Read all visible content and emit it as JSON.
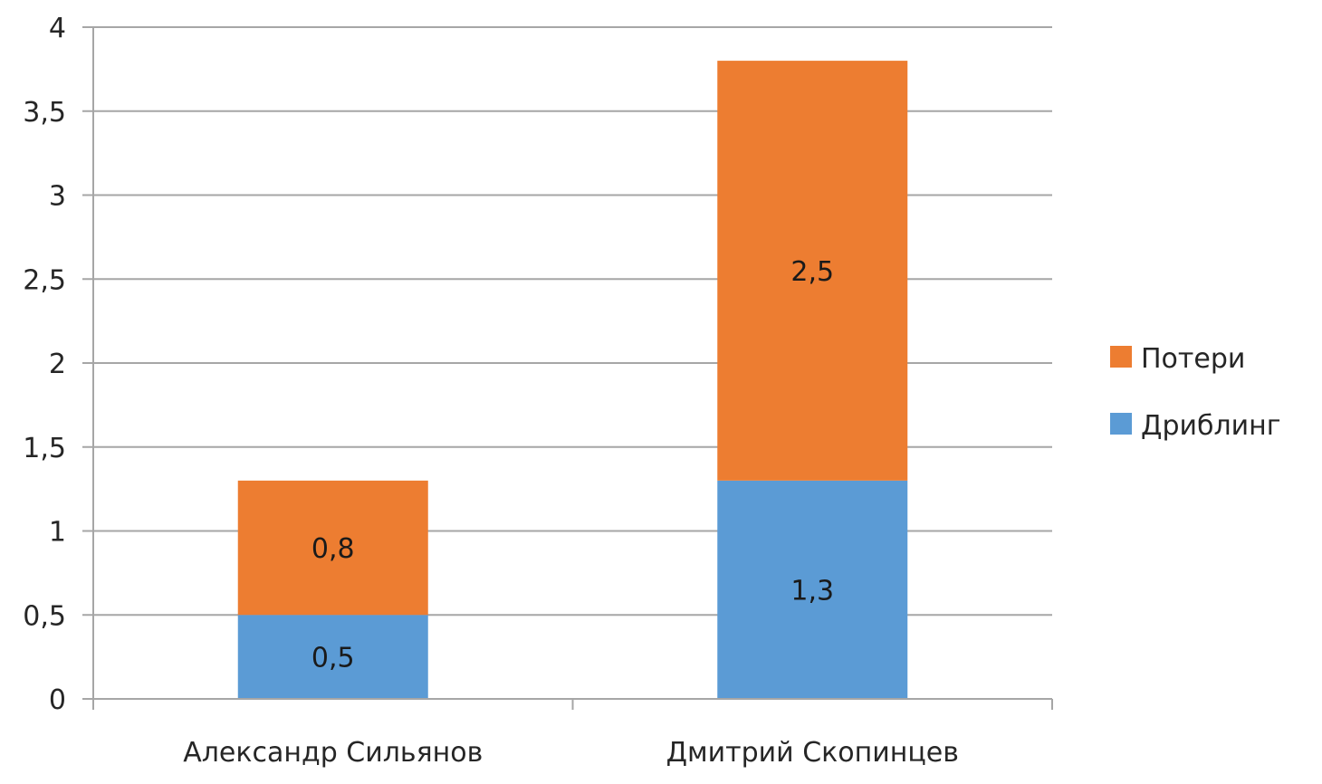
{
  "chart_data": {
    "type": "bar",
    "stacked": true,
    "categories": [
      "Александр Сильянов",
      "Дмитрий Скопинцев"
    ],
    "series": [
      {
        "name": "Дриблинг",
        "values": [
          0.5,
          1.3
        ],
        "labels": [
          "0,5",
          "1,3"
        ],
        "color": "#5b9bd5"
      },
      {
        "name": "Потери",
        "values": [
          0.8,
          2.5
        ],
        "labels": [
          "0,8",
          "2,5"
        ],
        "color": "#ed7d31"
      }
    ],
    "y_ticks": [
      0,
      0.5,
      1,
      1.5,
      2,
      2.5,
      3,
      3.5,
      4
    ],
    "y_tick_labels": [
      "0",
      "0,5",
      "1",
      "1,5",
      "2",
      "2,5",
      "3",
      "3,5",
      "4"
    ],
    "ylim": [
      0,
      4
    ],
    "grid": true,
    "legend_position": "right",
    "legend_order": [
      "Потери",
      "Дриблинг"
    ],
    "title": "",
    "xlabel": "",
    "ylabel": ""
  }
}
